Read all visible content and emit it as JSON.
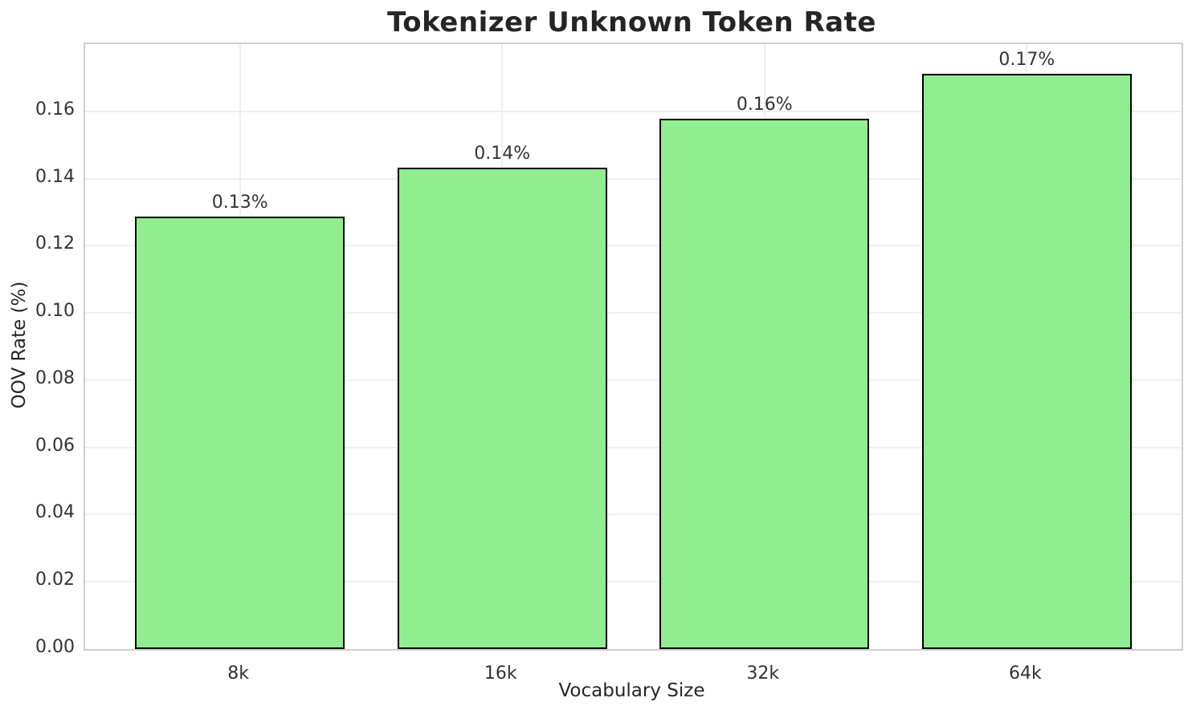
{
  "chart_data": {
    "type": "bar",
    "title": "Tokenizer Unknown Token Rate",
    "xlabel": "Vocabulary Size",
    "ylabel": "OOV Rate (%)",
    "categories": [
      "8k",
      "16k",
      "32k",
      "64k"
    ],
    "values": [
      0.1287,
      0.1432,
      0.1578,
      0.1712
    ],
    "bar_labels": [
      "0.13%",
      "0.14%",
      "0.16%",
      "0.17%"
    ],
    "ylim": [
      0,
      0.18
    ],
    "yticks": [
      0.0,
      0.02,
      0.04,
      0.06,
      0.08,
      0.1,
      0.12,
      0.14,
      0.16
    ],
    "ytick_labels": [
      "0.00",
      "0.02",
      "0.04",
      "0.06",
      "0.08",
      "0.10",
      "0.12",
      "0.14",
      "0.16"
    ],
    "grid": true,
    "legend": "none",
    "bar_color": "#90EE90",
    "bar_edge_color": "#000000",
    "grid_color": "#efefef",
    "spine_color": "#cfcfcf",
    "text_color": "#333333",
    "title_color": "#252525"
  }
}
